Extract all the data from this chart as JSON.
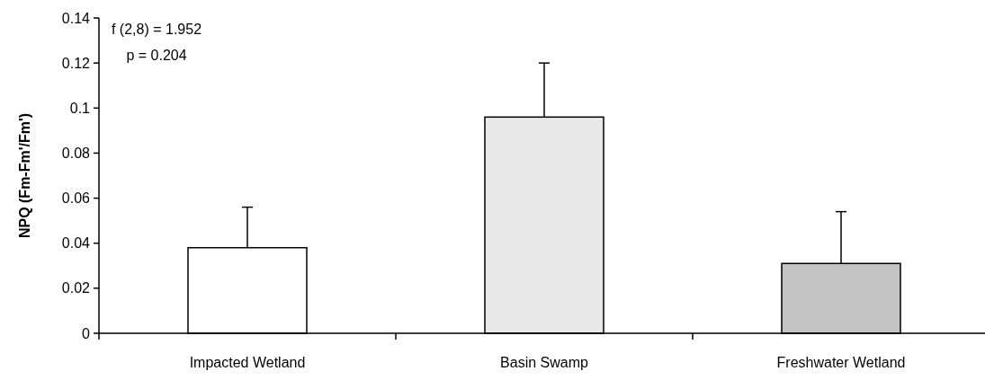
{
  "chart_data": {
    "type": "bar",
    "ylabel": "NPQ (Fm-Fm'/Fm')",
    "categories": [
      "Impacted Wetland",
      "Basin Swamp",
      "Freshwater Wetland"
    ],
    "values": [
      0.038,
      0.096,
      0.031
    ],
    "errors": [
      [
        0.038,
        0.056
      ],
      [
        0.096,
        0.12
      ],
      [
        0.031,
        0.054
      ]
    ],
    "colors": [
      "#ffffff",
      "#e8e8e8",
      "#c4c4c4"
    ],
    "ylim": [
      0,
      0.14
    ],
    "yticks": [
      0,
      0.02,
      0.04,
      0.06,
      0.08,
      {
        "value": 0.1,
        "label": "0.1"
      },
      0.12,
      0.14
    ],
    "annotations": [
      "f (2,8) = 1.952",
      "p = 0.204"
    ],
    "grid": false
  }
}
